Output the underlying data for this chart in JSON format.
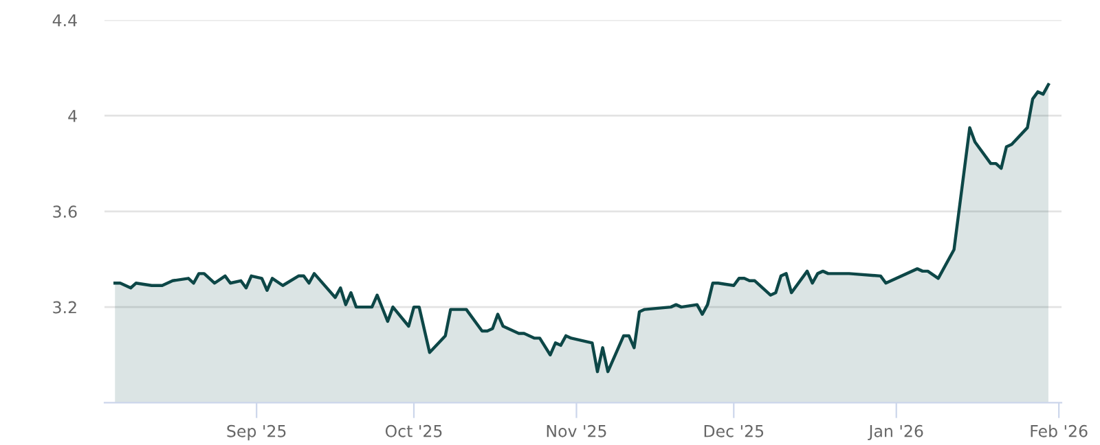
{
  "chart_data": {
    "type": "area",
    "grid": "y",
    "legend": false,
    "marker": "none",
    "line_style": "solid",
    "xlim": [
      "2025-08-03",
      "2026-02-01T12:00"
    ],
    "xticks": [
      {
        "value": "2025-09-01",
        "label": "Sep '25"
      },
      {
        "value": "2025-10-01",
        "label": "Oct '25"
      },
      {
        "value": "2025-11-01",
        "label": "Nov '25"
      },
      {
        "value": "2025-12-01",
        "label": "Dec '25"
      },
      {
        "value": "2026-01-01",
        "label": "Jan '26"
      },
      {
        "value": "2026-02-01",
        "label": "Feb '26"
      }
    ],
    "ylim": [
      2.8,
      4.4
    ],
    "yticks": [
      3.2,
      3.6,
      4,
      4.4
    ],
    "series": [
      {
        "color": "#0d4747",
        "x": [
          "2025-08-05",
          "2025-08-06",
          "2025-08-08",
          "2025-08-09",
          "2025-08-12",
          "2025-08-14",
          "2025-08-15",
          "2025-08-16",
          "2025-08-19",
          "2025-08-20",
          "2025-08-21",
          "2025-08-22",
          "2025-08-24",
          "2025-08-26",
          "2025-08-27",
          "2025-08-29",
          "2025-08-30",
          "2025-08-31",
          "2025-09-02",
          "2025-09-03",
          "2025-09-04",
          "2025-09-06",
          "2025-09-09",
          "2025-09-10",
          "2025-09-11",
          "2025-09-12",
          "2025-09-16",
          "2025-09-17",
          "2025-09-18",
          "2025-09-19",
          "2025-09-20",
          "2025-09-23",
          "2025-09-24",
          "2025-09-26",
          "2025-09-27",
          "2025-09-30",
          "2025-10-01",
          "2025-10-02",
          "2025-10-04",
          "2025-10-07",
          "2025-10-08",
          "2025-10-11",
          "2025-10-14",
          "2025-10-15",
          "2025-10-16",
          "2025-10-17",
          "2025-10-18",
          "2025-10-21",
          "2025-10-22",
          "2025-10-24",
          "2025-10-25",
          "2025-10-27",
          "2025-10-28",
          "2025-10-29",
          "2025-10-30",
          "2025-10-31",
          "2025-11-04",
          "2025-11-05",
          "2025-11-06",
          "2025-11-07",
          "2025-11-10",
          "2025-11-11",
          "2025-11-12",
          "2025-11-13",
          "2025-11-14",
          "2025-11-19",
          "2025-11-20",
          "2025-11-21",
          "2025-11-24",
          "2025-11-25",
          "2025-11-26",
          "2025-11-27",
          "2025-11-28",
          "2025-12-01",
          "2025-12-02",
          "2025-12-03",
          "2025-12-04",
          "2025-12-05",
          "2025-12-08",
          "2025-12-09",
          "2025-12-10",
          "2025-12-11",
          "2025-12-12",
          "2025-12-15",
          "2025-12-16",
          "2025-12-17",
          "2025-12-18",
          "2025-12-19",
          "2025-12-23",
          "2025-12-29",
          "2025-12-30",
          "2026-01-05",
          "2026-01-06",
          "2026-01-07",
          "2026-01-09",
          "2026-01-12",
          "2026-01-15",
          "2026-01-16",
          "2026-01-19",
          "2026-01-20",
          "2026-01-21",
          "2026-01-22",
          "2026-01-23",
          "2026-01-26",
          "2026-01-27",
          "2026-01-28",
          "2026-01-29",
          "2026-01-30"
        ],
        "values": [
          3.3,
          3.3,
          3.28,
          3.3,
          3.29,
          3.29,
          3.3,
          3.31,
          3.32,
          3.3,
          3.34,
          3.34,
          3.3,
          3.33,
          3.3,
          3.31,
          3.28,
          3.33,
          3.32,
          3.27,
          3.32,
          3.29,
          3.33,
          3.33,
          3.3,
          3.34,
          3.24,
          3.28,
          3.21,
          3.26,
          3.2,
          3.2,
          3.25,
          3.14,
          3.2,
          3.12,
          3.2,
          3.2,
          3.01,
          3.08,
          3.19,
          3.19,
          3.1,
          3.1,
          3.11,
          3.17,
          3.12,
          3.09,
          3.09,
          3.07,
          3.07,
          3.0,
          3.05,
          3.04,
          3.08,
          3.07,
          3.05,
          2.93,
          3.03,
          2.93,
          3.08,
          3.08,
          3.03,
          3.18,
          3.19,
          3.2,
          3.21,
          3.2,
          3.21,
          3.17,
          3.21,
          3.3,
          3.3,
          3.29,
          3.32,
          3.32,
          3.31,
          3.31,
          3.25,
          3.26,
          3.33,
          3.34,
          3.26,
          3.35,
          3.3,
          3.34,
          3.35,
          3.34,
          3.34,
          3.33,
          3.3,
          3.36,
          3.35,
          3.35,
          3.32,
          3.44,
          3.95,
          3.89,
          3.8,
          3.8,
          3.78,
          3.87,
          3.88,
          3.95,
          4.07,
          4.1,
          4.09,
          4.13
        ]
      }
    ]
  }
}
